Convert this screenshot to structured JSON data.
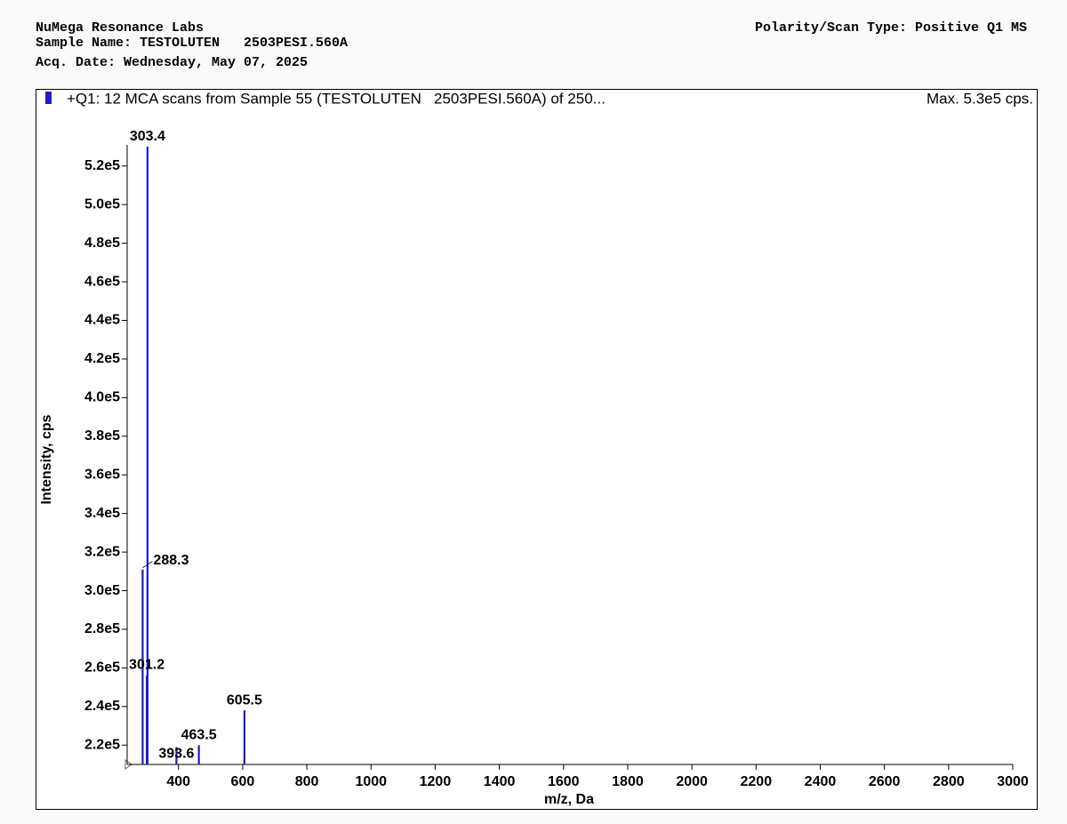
{
  "header": {
    "lab": "NuMega Resonance Labs",
    "sample": "Sample Name: TESTOLUTEN   2503PESI.560A",
    "date": "Acq. Date: Wednesday, May 07, 2025",
    "scan_type": "Polarity/Scan Type: Positive Q1 MS"
  },
  "chart_data": {
    "type": "spectrum",
    "legend_text": "+Q1: 12 MCA scans from Sample 55 (TESTOLUTEN   2503PESI.560A) of 250...",
    "max_label": "Max. 5.3e5 cps.",
    "xlabel": "m/z, Da",
    "ylabel": "Intensity, cps",
    "color": "#1c1cc8",
    "x": [
      288.3,
      301.2,
      303.4,
      393.6,
      463.5,
      605.5
    ],
    "values": [
      311000,
      256000,
      530000,
      219000,
      220000,
      238000
    ],
    "xlim": [
      240,
      3000
    ],
    "xticks": [
      400,
      600,
      800,
      1000,
      1200,
      1400,
      1600,
      1800,
      2000,
      2200,
      2400,
      2600,
      2800,
      3000
    ],
    "ylim": [
      210000,
      530000
    ],
    "yticks": [
      {
        "value": 220000,
        "label": "2.2e5"
      },
      {
        "value": 240000,
        "label": "2.4e5"
      },
      {
        "value": 260000,
        "label": "2.6e5"
      },
      {
        "value": 280000,
        "label": "2.8e5"
      },
      {
        "value": 300000,
        "label": "3.0e5"
      },
      {
        "value": 320000,
        "label": "3.2e5"
      },
      {
        "value": 340000,
        "label": "3.4e5"
      },
      {
        "value": 360000,
        "label": "3.6e5"
      },
      {
        "value": 380000,
        "label": "3.8e5"
      },
      {
        "value": 400000,
        "label": "4.0e5"
      },
      {
        "value": 420000,
        "label": "4.2e5"
      },
      {
        "value": 440000,
        "label": "4.4e5"
      },
      {
        "value": 460000,
        "label": "4.6e5"
      },
      {
        "value": 480000,
        "label": "4.8e5"
      },
      {
        "value": 500000,
        "label": "5.0e5"
      },
      {
        "value": 520000,
        "label": "5.2e5"
      }
    ]
  }
}
